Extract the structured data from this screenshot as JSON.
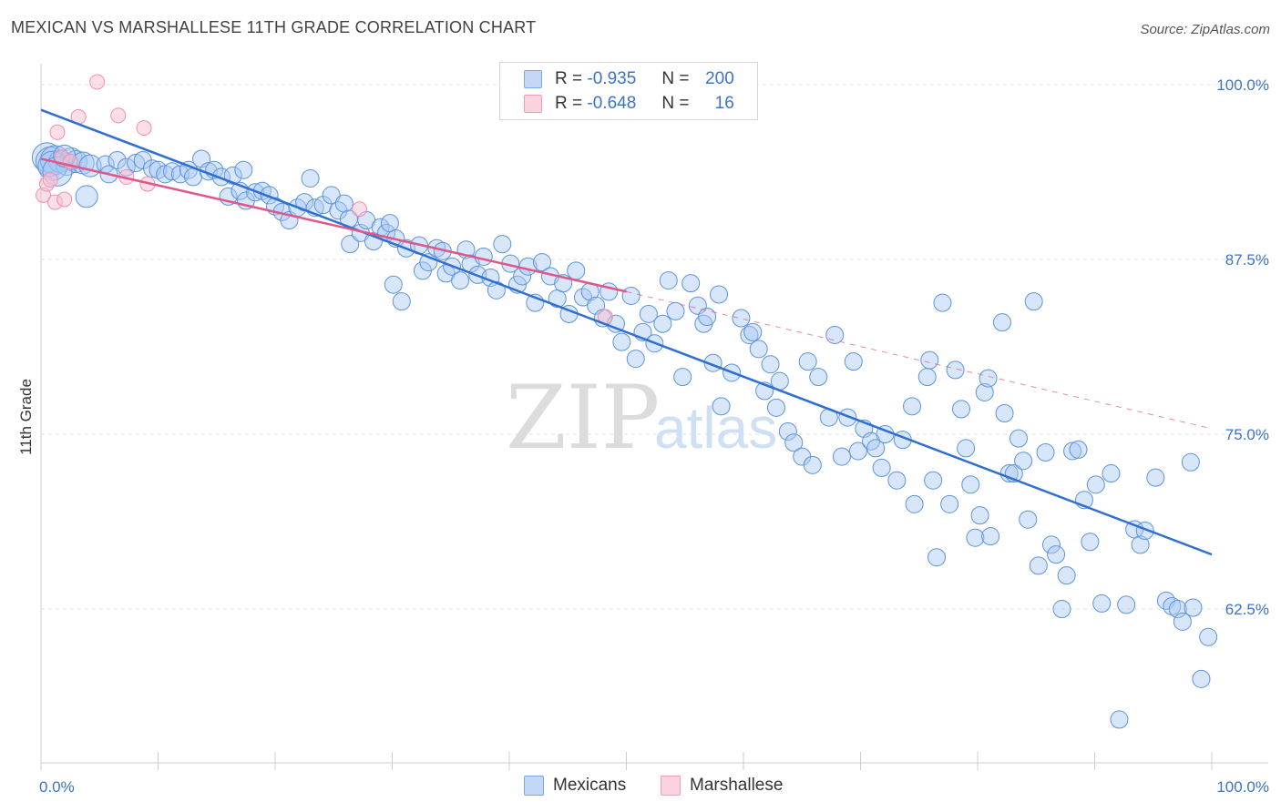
{
  "title": "MEXICAN VS MARSHALLESE 11TH GRADE CORRELATION CHART",
  "source": "Source: ZipAtlas.com",
  "watermark": {
    "zip": "ZIP",
    "atlas": "atlas"
  },
  "legend": {
    "rows": [
      {
        "r_label": "R =",
        "r_value": "-0.935",
        "n_label": "N =",
        "n_value": "200",
        "color": "#a8c8f5"
      },
      {
        "r_label": "R =",
        "r_value": "-0.648",
        "n_label": "N =",
        "n_value": "16",
        "color": "#f8bfd0"
      }
    ]
  },
  "bottom_legend": [
    {
      "label": "Mexicans",
      "color": "#a8c8f5"
    },
    {
      "label": "Marshallese",
      "color": "#f8bfd0"
    }
  ],
  "chart_data": {
    "type": "scatter",
    "title": "MEXICAN VS MARSHALLESE 11TH GRADE CORRELATION CHART",
    "xlabel": "",
    "ylabel": "11th Grade",
    "xlim": [
      0,
      100
    ],
    "ylim": [
      51.5,
      101.5
    ],
    "x_tick_labels": [
      "0.0%",
      "100.0%"
    ],
    "y_ticks": [
      100.0,
      87.5,
      75.0,
      62.5
    ],
    "y_tick_labels": [
      "100.0%",
      "87.5%",
      "75.0%",
      "62.5%"
    ],
    "grid": true,
    "legend_position": "top-center",
    "colors": {
      "mexicans": "#7aa8e8",
      "mexicans_line": "#2e6fd1",
      "marshallese": "#f19ab6",
      "marshallese_line": "#e0568a"
    },
    "series": [
      {
        "name": "Mexicans",
        "trend": {
          "x": [
            0,
            100
          ],
          "y": [
            98.2,
            66.4
          ]
        },
        "points": [
          [
            0.5,
            94.8
          ],
          [
            0.8,
            94.5
          ],
          [
            1.2,
            94.6
          ],
          [
            1.6,
            94.5
          ],
          [
            2.2,
            94.3
          ],
          [
            2.6,
            94.7
          ],
          [
            3.0,
            94.5
          ],
          [
            3.6,
            94.4
          ],
          [
            4.2,
            94.2
          ],
          [
            1.0,
            94.2
          ],
          [
            1.4,
            93.8
          ],
          [
            2.0,
            94.9
          ],
          [
            3.9,
            92.0
          ],
          [
            5.5,
            94.3
          ],
          [
            5.8,
            93.6
          ],
          [
            6.5,
            94.6
          ],
          [
            7.3,
            94.1
          ],
          [
            8.1,
            94.4
          ],
          [
            8.7,
            94.6
          ],
          [
            9.5,
            94.0
          ],
          [
            10.0,
            93.9
          ],
          [
            10.6,
            93.6
          ],
          [
            11.2,
            93.8
          ],
          [
            11.9,
            93.6
          ],
          [
            12.6,
            93.9
          ],
          [
            13.0,
            93.4
          ],
          [
            13.7,
            94.7
          ],
          [
            14.3,
            93.8
          ],
          [
            14.8,
            93.9
          ],
          [
            15.4,
            93.4
          ],
          [
            16.0,
            92.0
          ],
          [
            16.4,
            93.5
          ],
          [
            17.0,
            92.4
          ],
          [
            17.5,
            91.7
          ],
          [
            17.3,
            93.9
          ],
          [
            18.3,
            92.3
          ],
          [
            18.9,
            92.4
          ],
          [
            19.5,
            92.1
          ],
          [
            20.0,
            91.3
          ],
          [
            20.6,
            90.9
          ],
          [
            21.2,
            90.3
          ],
          [
            21.9,
            91.2
          ],
          [
            22.5,
            91.6
          ],
          [
            23.0,
            93.3
          ],
          [
            23.4,
            91.2
          ],
          [
            24.1,
            91.4
          ],
          [
            24.8,
            92.1
          ],
          [
            25.4,
            91.0
          ],
          [
            25.9,
            91.5
          ],
          [
            26.3,
            90.4
          ],
          [
            26.4,
            88.6
          ],
          [
            27.3,
            89.4
          ],
          [
            27.8,
            90.3
          ],
          [
            28.4,
            88.8
          ],
          [
            29.0,
            89.8
          ],
          [
            29.5,
            89.4
          ],
          [
            29.8,
            90.1
          ],
          [
            30.3,
            89.0
          ],
          [
            30.1,
            85.7
          ],
          [
            30.8,
            84.5
          ],
          [
            31.2,
            88.3
          ],
          [
            32.3,
            88.5
          ],
          [
            32.6,
            86.7
          ],
          [
            33.1,
            87.3
          ],
          [
            33.8,
            88.3
          ],
          [
            34.3,
            88.1
          ],
          [
            34.6,
            86.5
          ],
          [
            35.1,
            87.0
          ],
          [
            35.8,
            86.0
          ],
          [
            36.3,
            88.2
          ],
          [
            36.7,
            87.2
          ],
          [
            37.3,
            86.4
          ],
          [
            37.8,
            87.7
          ],
          [
            38.4,
            86.2
          ],
          [
            38.9,
            85.3
          ],
          [
            39.4,
            88.6
          ],
          [
            40.1,
            87.2
          ],
          [
            40.7,
            85.7
          ],
          [
            41.1,
            86.3
          ],
          [
            41.6,
            87.0
          ],
          [
            42.2,
            84.4
          ],
          [
            42.8,
            87.3
          ],
          [
            43.5,
            86.3
          ],
          [
            44.1,
            84.7
          ],
          [
            44.6,
            85.8
          ],
          [
            45.1,
            83.6
          ],
          [
            45.7,
            86.7
          ],
          [
            46.3,
            84.8
          ],
          [
            46.9,
            85.2
          ],
          [
            47.4,
            84.2
          ],
          [
            48.0,
            83.3
          ],
          [
            48.5,
            85.2
          ],
          [
            49.1,
            82.9
          ],
          [
            49.6,
            81.6
          ],
          [
            50.4,
            84.9
          ],
          [
            50.8,
            80.4
          ],
          [
            51.4,
            82.3
          ],
          [
            51.9,
            83.6
          ],
          [
            52.4,
            81.5
          ],
          [
            53.1,
            82.9
          ],
          [
            53.6,
            86.0
          ],
          [
            54.2,
            83.8
          ],
          [
            54.8,
            79.1
          ],
          [
            55.5,
            85.8
          ],
          [
            56.1,
            84.2
          ],
          [
            56.6,
            82.9
          ],
          [
            56.9,
            83.4
          ],
          [
            57.4,
            80.1
          ],
          [
            57.9,
            85.0
          ],
          [
            58.1,
            77.0
          ],
          [
            59.0,
            79.4
          ],
          [
            59.8,
            83.3
          ],
          [
            60.5,
            82.1
          ],
          [
            60.8,
            82.3
          ],
          [
            61.3,
            81.1
          ],
          [
            61.8,
            78.1
          ],
          [
            62.3,
            80.0
          ],
          [
            62.8,
            76.9
          ],
          [
            63.1,
            78.8
          ],
          [
            63.8,
            75.2
          ],
          [
            64.3,
            74.4
          ],
          [
            65.0,
            73.4
          ],
          [
            65.5,
            80.2
          ],
          [
            65.9,
            72.8
          ],
          [
            66.4,
            79.1
          ],
          [
            67.3,
            76.2
          ],
          [
            67.8,
            82.1
          ],
          [
            68.4,
            73.4
          ],
          [
            68.9,
            76.2
          ],
          [
            69.4,
            80.2
          ],
          [
            69.8,
            73.8
          ],
          [
            70.3,
            75.4
          ],
          [
            70.9,
            74.5
          ],
          [
            71.3,
            74.0
          ],
          [
            71.8,
            72.6
          ],
          [
            72.1,
            75.0
          ],
          [
            73.1,
            71.7
          ],
          [
            73.6,
            74.6
          ],
          [
            74.4,
            77.0
          ],
          [
            74.6,
            70.0
          ],
          [
            75.7,
            79.1
          ],
          [
            75.9,
            80.3
          ],
          [
            76.2,
            71.7
          ],
          [
            76.5,
            66.2
          ],
          [
            77.0,
            84.4
          ],
          [
            77.6,
            70.0
          ],
          [
            78.1,
            79.6
          ],
          [
            78.6,
            76.8
          ],
          [
            79.0,
            74.0
          ],
          [
            79.4,
            71.4
          ],
          [
            79.8,
            67.6
          ],
          [
            80.2,
            69.2
          ],
          [
            80.6,
            78.0
          ],
          [
            80.9,
            79.0
          ],
          [
            81.1,
            67.7
          ],
          [
            82.1,
            83.0
          ],
          [
            82.3,
            76.5
          ],
          [
            82.7,
            72.2
          ],
          [
            83.1,
            72.2
          ],
          [
            83.5,
            74.7
          ],
          [
            83.9,
            73.1
          ],
          [
            84.3,
            68.9
          ],
          [
            84.8,
            84.5
          ],
          [
            85.2,
            65.6
          ],
          [
            85.8,
            73.7
          ],
          [
            86.3,
            67.1
          ],
          [
            86.7,
            66.4
          ],
          [
            87.2,
            62.5
          ],
          [
            87.6,
            64.9
          ],
          [
            88.1,
            73.8
          ],
          [
            88.6,
            73.9
          ],
          [
            89.1,
            70.3
          ],
          [
            89.6,
            67.3
          ],
          [
            90.1,
            71.4
          ],
          [
            90.6,
            62.9
          ],
          [
            91.4,
            72.2
          ],
          [
            92.1,
            54.6
          ],
          [
            92.7,
            62.8
          ],
          [
            93.4,
            68.2
          ],
          [
            93.9,
            67.1
          ],
          [
            94.3,
            68.1
          ],
          [
            95.2,
            71.9
          ],
          [
            96.1,
            63.1
          ],
          [
            96.6,
            62.7
          ],
          [
            97.1,
            62.5
          ],
          [
            97.5,
            61.6
          ],
          [
            98.2,
            73.0
          ],
          [
            98.4,
            62.6
          ],
          [
            99.7,
            60.5
          ],
          [
            99.1,
            57.5
          ]
        ]
      },
      {
        "name": "Marshallese",
        "trend": {
          "x": [
            0,
            50
          ],
          "y": [
            94.7,
            85.2
          ]
        },
        "trend_dashed": {
          "x": [
            50,
            100
          ],
          "y": [
            85.2,
            75.4
          ]
        },
        "points": [
          [
            0.2,
            92.1
          ],
          [
            0.5,
            92.9
          ],
          [
            0.8,
            93.2
          ],
          [
            1.2,
            91.6
          ],
          [
            1.4,
            96.6
          ],
          [
            1.8,
            94.8
          ],
          [
            2.0,
            91.8
          ],
          [
            2.5,
            94.5
          ],
          [
            3.2,
            97.7
          ],
          [
            4.8,
            100.2
          ],
          [
            6.6,
            97.8
          ],
          [
            7.3,
            93.4
          ],
          [
            8.8,
            96.9
          ],
          [
            9.1,
            92.9
          ],
          [
            27.2,
            91.1
          ],
          [
            48.2,
            83.4
          ]
        ]
      }
    ]
  }
}
